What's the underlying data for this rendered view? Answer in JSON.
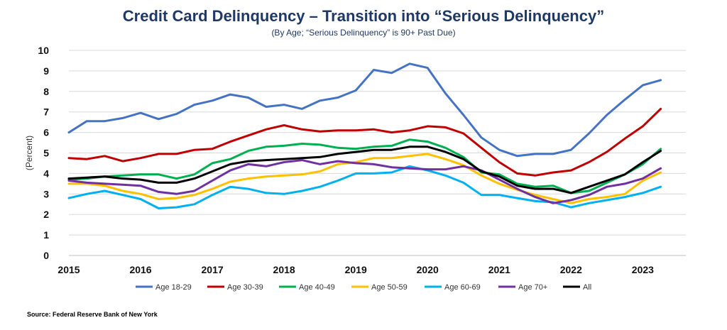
{
  "title": "Credit Card Delinquency – Transition into “Serious Delinquency”",
  "subtitle": "(By Age; “Serious Delinquency” is 90+ Past Due)",
  "source": "Source: Federal Reserve Bank of New York",
  "chart_data": {
    "type": "line",
    "ylabel": "(Percent)",
    "ylim": [
      0,
      10
    ],
    "xlim": [
      2015,
      2023.6
    ],
    "yticks": [
      0,
      1,
      2,
      3,
      4,
      5,
      6,
      7,
      8,
      9,
      10
    ],
    "xticks": [
      2015,
      2016,
      2017,
      2018,
      2019,
      2020,
      2021,
      2022,
      2023
    ],
    "grid": true,
    "legend": "bottom",
    "x": [
      2015.0,
      2015.25,
      2015.5,
      2015.75,
      2016.0,
      2016.25,
      2016.5,
      2016.75,
      2017.0,
      2017.25,
      2017.5,
      2017.75,
      2018.0,
      2018.25,
      2018.5,
      2018.75,
      2019.0,
      2019.25,
      2019.5,
      2019.75,
      2020.0,
      2020.25,
      2020.5,
      2020.75,
      2021.0,
      2021.25,
      2021.5,
      2021.75,
      2022.0,
      2022.25,
      2022.5,
      2022.75,
      2023.0,
      2023.25
    ],
    "series": [
      {
        "name": "Age 18-29",
        "color": "#4472c4",
        "values": [
          6.0,
          6.55,
          6.55,
          6.7,
          6.95,
          6.65,
          6.9,
          7.35,
          7.55,
          7.85,
          7.7,
          7.25,
          7.35,
          7.15,
          7.55,
          7.7,
          8.05,
          9.05,
          8.9,
          9.35,
          9.15,
          7.9,
          6.85,
          5.75,
          5.15,
          4.85,
          4.95,
          4.95,
          5.15,
          5.95,
          6.85,
          7.6,
          8.3,
          8.55
        ]
      },
      {
        "name": "Age 30-39",
        "color": "#c00000",
        "values": [
          4.75,
          4.7,
          4.85,
          4.6,
          4.75,
          4.95,
          4.95,
          5.15,
          5.2,
          5.55,
          5.85,
          6.15,
          6.35,
          6.15,
          6.05,
          6.1,
          6.1,
          6.15,
          6.0,
          6.1,
          6.3,
          6.25,
          5.95,
          5.25,
          4.55,
          4.0,
          3.9,
          4.05,
          4.15,
          4.55,
          5.05,
          5.7,
          6.3,
          7.15
        ]
      },
      {
        "name": "Age 40-49",
        "color": "#00b050",
        "values": [
          3.7,
          3.75,
          3.85,
          3.9,
          3.95,
          3.95,
          3.75,
          3.95,
          4.5,
          4.7,
          5.1,
          5.3,
          5.35,
          5.45,
          5.4,
          5.25,
          5.2,
          5.3,
          5.35,
          5.65,
          5.55,
          5.25,
          4.8,
          4.05,
          3.95,
          3.5,
          3.35,
          3.4,
          3.05,
          3.15,
          3.55,
          3.95,
          4.45,
          5.2
        ]
      },
      {
        "name": "Age 50-59",
        "color": "#ffc000",
        "values": [
          3.5,
          3.5,
          3.4,
          3.15,
          3.0,
          2.75,
          2.8,
          2.95,
          3.25,
          3.6,
          3.75,
          3.85,
          3.9,
          3.95,
          4.1,
          4.45,
          4.55,
          4.75,
          4.75,
          4.85,
          4.95,
          4.7,
          4.4,
          3.9,
          3.5,
          3.2,
          2.95,
          2.75,
          2.55,
          2.75,
          2.85,
          3.0,
          3.65,
          4.05
        ]
      },
      {
        "name": "Age 60-69",
        "color": "#00b0f0",
        "values": [
          2.8,
          3.0,
          3.15,
          2.95,
          2.75,
          2.3,
          2.35,
          2.5,
          2.95,
          3.35,
          3.25,
          3.05,
          3.0,
          3.15,
          3.35,
          3.65,
          4.0,
          4.0,
          4.05,
          4.35,
          4.15,
          3.9,
          3.55,
          2.95,
          2.95,
          2.8,
          2.65,
          2.6,
          2.35,
          2.55,
          2.7,
          2.85,
          3.05,
          3.35
        ]
      },
      {
        "name": "Age 70+",
        "color": "#7030a0",
        "values": [
          3.65,
          3.55,
          3.5,
          3.45,
          3.4,
          3.1,
          3.0,
          3.15,
          3.65,
          4.15,
          4.45,
          4.35,
          4.55,
          4.65,
          4.45,
          4.6,
          4.5,
          4.45,
          4.3,
          4.25,
          4.2,
          4.2,
          4.35,
          4.15,
          3.7,
          3.25,
          2.85,
          2.55,
          2.7,
          2.95,
          3.35,
          3.5,
          3.75,
          4.25
        ]
      },
      {
        "name": "All",
        "color": "#000000",
        "values": [
          3.75,
          3.8,
          3.85,
          3.75,
          3.7,
          3.55,
          3.55,
          3.75,
          4.1,
          4.45,
          4.6,
          4.65,
          4.7,
          4.75,
          4.8,
          4.95,
          5.05,
          5.15,
          5.15,
          5.3,
          5.3,
          5.05,
          4.7,
          4.1,
          3.85,
          3.4,
          3.25,
          3.25,
          3.05,
          3.35,
          3.65,
          3.95,
          4.55,
          5.1
        ]
      }
    ]
  }
}
